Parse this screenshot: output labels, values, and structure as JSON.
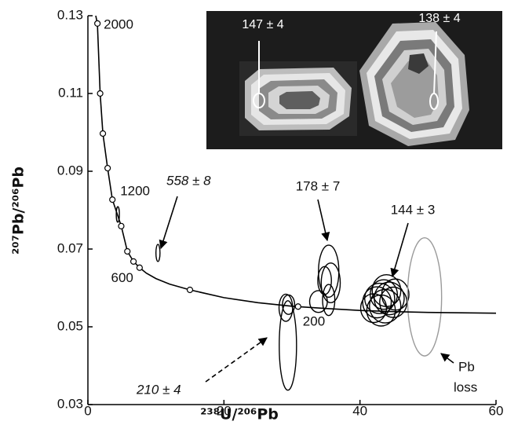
{
  "chart_data": {
    "type": "scatter",
    "x_label": "²³⁸U/²⁰⁶Pb",
    "y_label": "²⁰⁷Pb/²⁰⁶Pb",
    "xlim": [
      0,
      60
    ],
    "xticks": [
      0,
      20,
      40,
      60
    ],
    "ylim": [
      0.03,
      0.13
    ],
    "yticks": [
      0.03,
      0.05,
      0.07,
      0.09,
      0.11,
      0.13
    ],
    "concordia": {
      "color": "#000",
      "x": [
        1.15,
        1.4,
        1.8,
        2.2,
        2.9,
        3.6,
        4.9,
        5.8,
        6.7,
        7.6,
        8.6,
        10,
        12,
        15,
        20,
        25,
        30,
        35,
        40,
        45,
        50,
        55,
        60
      ],
      "y": [
        0.13,
        0.128,
        0.11,
        0.0997,
        0.0908,
        0.0827,
        0.0759,
        0.0694,
        0.0668,
        0.0652,
        0.0638,
        0.0624,
        0.061,
        0.0595,
        0.0575,
        0.0562,
        0.0553,
        0.0547,
        0.0542,
        0.0539,
        0.0537,
        0.0536,
        0.0535
      ]
    },
    "age_markers": {
      "x": [
        1.4,
        1.8,
        2.2,
        2.9,
        3.6,
        4.9,
        5.8,
        6.7,
        7.6,
        15,
        30.9
      ],
      "y": [
        0.128,
        0.11,
        0.0997,
        0.0908,
        0.0827,
        0.0759,
        0.0694,
        0.0668,
        0.0652,
        0.0595,
        0.0552
      ],
      "labels": [
        "2000",
        null,
        null,
        null,
        "1200",
        null,
        null,
        null,
        "600",
        null,
        "200"
      ]
    },
    "ellipse_groups": [
      {
        "color": "#000",
        "x": [
          4.4,
          10.3,
          29.4,
          29.5,
          29.1,
          35.4,
          35.7,
          34.8,
          33.9,
          35.4,
          42.5,
          43.5,
          44.3,
          44.9,
          43.1,
          43.7,
          42.0,
          45.2,
          43.9,
          42.9
        ],
        "y": [
          0.0789,
          0.069,
          0.0452,
          0.0557,
          0.0549,
          0.0643,
          0.0613,
          0.0619,
          0.0565,
          0.0569,
          0.0563,
          0.0583,
          0.0573,
          0.0563,
          0.0542,
          0.0553,
          0.0548,
          0.0583,
          0.0593,
          0.0573
        ],
        "rx": [
          0.23,
          0.3,
          1.27,
          0.9,
          1.0,
          1.5,
          1.4,
          1.0,
          1.3,
          0.9,
          2.1,
          2.0,
          2.2,
          2.0,
          2.1,
          2.3,
          1.9,
          2.0,
          2.1,
          2.2
        ],
        "ry": [
          0.002,
          0.0022,
          0.0115,
          0.0025,
          0.0035,
          0.0067,
          0.0051,
          0.0036,
          0.0028,
          0.004,
          0.004,
          0.0038,
          0.0042,
          0.0039,
          0.004,
          0.0043,
          0.0037,
          0.004,
          0.0041,
          0.0039
        ]
      },
      {
        "color": "#9a9a9a",
        "x": [
          49.5
        ],
        "y": [
          0.0577
        ],
        "rx": [
          2.5
        ],
        "ry": [
          0.0152
        ]
      }
    ],
    "annotations": [
      "558 ± 8",
      "210 ± 4",
      "178 ± 7",
      "144 ± 3",
      "Pb",
      "loss"
    ],
    "inset_labels": [
      "147 ± 4",
      "138 ± 4"
    ]
  }
}
